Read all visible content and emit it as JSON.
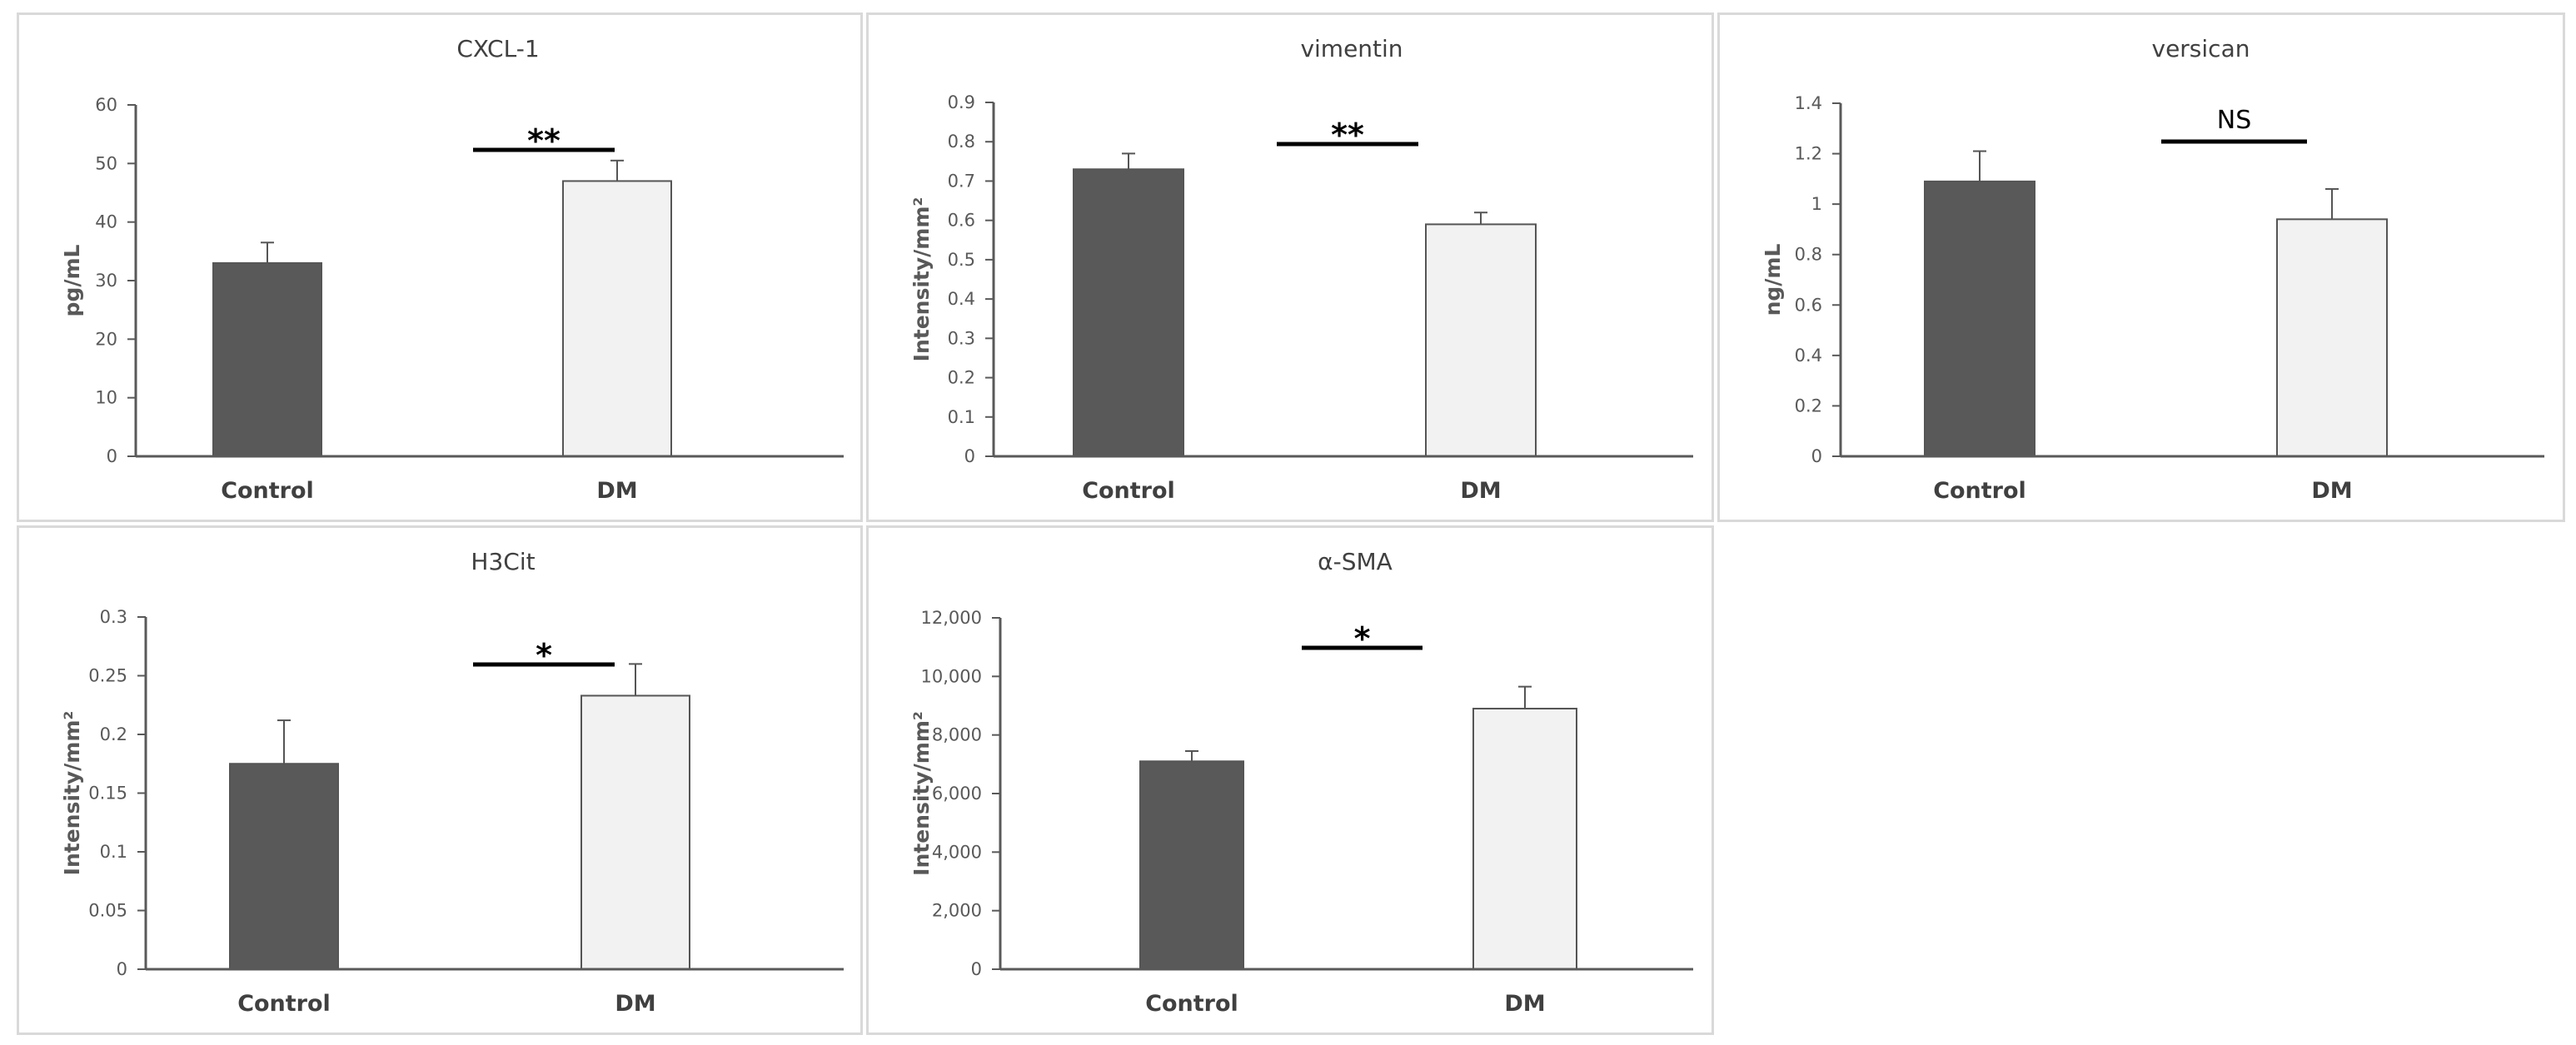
{
  "chart_data": [
    {
      "type": "bar",
      "title": "CXCL-1",
      "ylabel": "pg/mL",
      "categories": [
        "Control",
        "DM"
      ],
      "values": [
        33,
        47
      ],
      "errors": [
        3.5,
        3.5
      ],
      "ylim": [
        0,
        60
      ],
      "yticks": [
        0,
        10,
        20,
        30,
        40,
        50,
        60
      ],
      "ytick_labels": [
        "0",
        "10",
        "20",
        "30",
        "40",
        "50",
        "60"
      ],
      "significance": "**",
      "colors": [
        "#595959",
        "#f2f2f2"
      ]
    },
    {
      "type": "bar",
      "title": "vimentin",
      "ylabel": "Intensity/mm²",
      "categories": [
        "Control",
        "DM"
      ],
      "values": [
        0.73,
        0.59
      ],
      "errors": [
        0.04,
        0.03
      ],
      "ylim": [
        0,
        0.9
      ],
      "yticks": [
        0,
        0.1,
        0.2,
        0.3,
        0.4,
        0.5,
        0.6,
        0.7,
        0.8,
        0.9
      ],
      "ytick_labels": [
        "0",
        "0.1",
        "0.2",
        "0.3",
        "0.4",
        "0.5",
        "0.6",
        "0.7",
        "0.8",
        "0.9"
      ],
      "significance": "**",
      "colors": [
        "#595959",
        "#f2f2f2"
      ]
    },
    {
      "type": "bar",
      "title": "versican",
      "ylabel": "ng/mL",
      "categories": [
        "Control",
        "DM"
      ],
      "values": [
        1.09,
        0.94
      ],
      "errors": [
        0.12,
        0.12
      ],
      "ylim": [
        0,
        1.4
      ],
      "yticks": [
        0,
        0.2,
        0.4,
        0.6,
        0.8,
        1.0,
        1.2,
        1.4
      ],
      "ytick_labels": [
        "0",
        "0.2",
        "0.4",
        "0.6",
        "0.8",
        "1",
        "1.2",
        "1.4"
      ],
      "significance": "NS",
      "colors": [
        "#595959",
        "#f2f2f2"
      ]
    },
    {
      "type": "bar",
      "title": "H3Cit",
      "ylabel": "Intensity/mm²",
      "categories": [
        "Control",
        "DM"
      ],
      "values": [
        0.175,
        0.233
      ],
      "errors": [
        0.037,
        0.027
      ],
      "ylim": [
        0,
        0.3
      ],
      "yticks": [
        0,
        0.05,
        0.1,
        0.15,
        0.2,
        0.25,
        0.3
      ],
      "ytick_labels": [
        "0",
        "0.05",
        "0.1",
        "0.15",
        "0.2",
        "0.25",
        "0.3"
      ],
      "significance": "*",
      "colors": [
        "#595959",
        "#f2f2f2"
      ]
    },
    {
      "type": "bar",
      "title": "α-SMA",
      "ylabel": "Intensity/mm²",
      "categories": [
        "Control",
        "DM"
      ],
      "values": [
        7100,
        8900
      ],
      "errors": [
        350,
        750
      ],
      "ylim": [
        0,
        12000
      ],
      "yticks": [
        0,
        2000,
        4000,
        6000,
        8000,
        10000,
        12000
      ],
      "ytick_labels": [
        "0",
        "2,000",
        "4,000",
        "6,000",
        "8,000",
        "10,000",
        "12,000"
      ],
      "significance": "*",
      "colors": [
        "#595959",
        "#f2f2f2"
      ]
    }
  ]
}
